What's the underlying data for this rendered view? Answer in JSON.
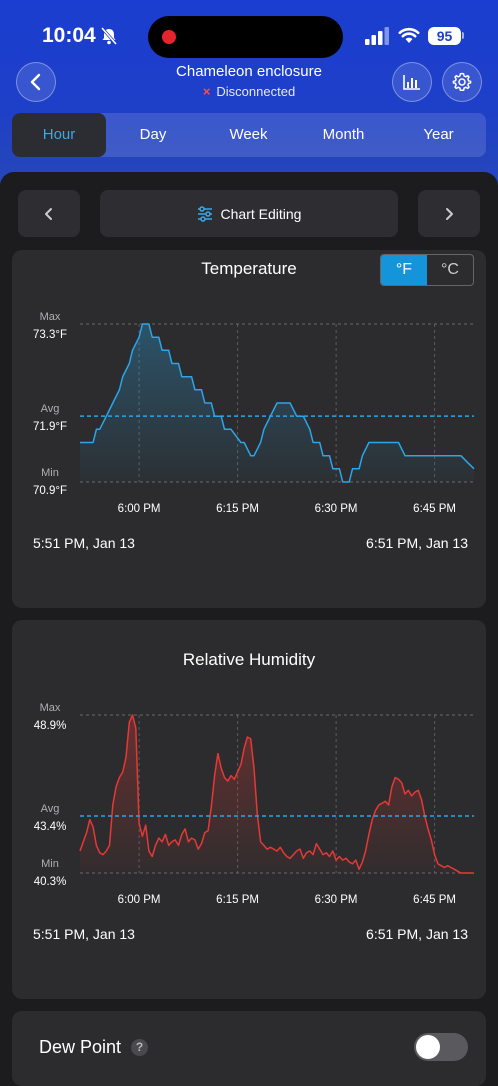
{
  "status_bar": {
    "time": "10:04",
    "battery": "95"
  },
  "header": {
    "title": "Chameleon enclosure",
    "status": "Disconnected",
    "status_icon": "×"
  },
  "tabs": [
    {
      "label": "Hour",
      "active": true
    },
    {
      "label": "Day",
      "active": false
    },
    {
      "label": "Week",
      "active": false
    },
    {
      "label": "Month",
      "active": false
    },
    {
      "label": "Year",
      "active": false
    }
  ],
  "toolbar": {
    "chart_editing_label": "Chart Editing"
  },
  "temperature": {
    "title": "Temperature",
    "unit_f": "°F",
    "unit_c": "°C",
    "max_label": "Max",
    "max_value": "73.3°F",
    "avg_label": "Avg",
    "avg_value": "71.9°F",
    "min_label": "Min",
    "min_value": "70.9°F",
    "start": "5:51 PM,  Jan 13",
    "end": "6:51 PM,  Jan 13"
  },
  "humidity": {
    "title": "Relative Humidity",
    "max_label": "Max",
    "max_value": "48.9%",
    "avg_label": "Avg",
    "avg_value": "43.4%",
    "min_label": "Min",
    "min_value": "40.3%",
    "start": "5:51 PM,  Jan 13",
    "end": "6:51 PM,  Jan 13"
  },
  "dew_point": {
    "label": "Dew Point",
    "help": "?",
    "enabled": false
  },
  "chart_data": [
    {
      "type": "area",
      "title": "Temperature",
      "x_ticks": [
        "6:00 PM",
        "6:15 PM",
        "6:30 PM",
        "6:45 PM"
      ],
      "x_range": [
        0,
        60
      ],
      "x_tick_values": [
        9,
        24,
        39,
        54
      ],
      "ylim": [
        70.9,
        73.3
      ],
      "y_max": 73.3,
      "y_avg": 71.9,
      "y_min": 70.9,
      "color": "#2ba6e8",
      "x": [
        0,
        2,
        2.5,
        3,
        4,
        5,
        6,
        6.5,
        7.5,
        8,
        9,
        9.5,
        10.5,
        11,
        12,
        12.5,
        13.5,
        14,
        15,
        15.5,
        17,
        17.5,
        18.5,
        19,
        20,
        20.5,
        21.5,
        22,
        23,
        24.5,
        25,
        26,
        26.5,
        27.5,
        28,
        29,
        30,
        32,
        33,
        34,
        35,
        35.5,
        36.5,
        37,
        38,
        38.5,
        39.5,
        40,
        41,
        41.5,
        42.5,
        43,
        44,
        45,
        45.5,
        46.5,
        47,
        48,
        48.5,
        49.5,
        50,
        51,
        52,
        53,
        54,
        55,
        56,
        57,
        58,
        59,
        60
      ],
      "y": [
        71.5,
        71.5,
        71.7,
        71.7,
        71.9,
        72.1,
        72.3,
        72.5,
        72.7,
        72.9,
        73.1,
        73.3,
        73.3,
        73.1,
        73.1,
        72.9,
        72.9,
        72.7,
        72.7,
        72.5,
        72.5,
        72.3,
        72.3,
        72.1,
        72.1,
        71.9,
        71.9,
        71.7,
        71.7,
        71.5,
        71.5,
        71.3,
        71.3,
        71.5,
        71.7,
        71.9,
        72.1,
        72.1,
        71.9,
        71.9,
        71.7,
        71.5,
        71.5,
        71.3,
        71.3,
        71.1,
        71.1,
        70.9,
        70.9,
        71.1,
        71.1,
        71.3,
        71.5,
        71.5,
        71.5,
        71.5,
        71.5,
        71.5,
        71.5,
        71.3,
        71.3,
        71.3,
        71.3,
        71.3,
        71.3,
        71.3,
        71.3,
        71.3,
        71.3,
        71.2,
        71.1
      ]
    },
    {
      "type": "area",
      "title": "Relative Humidity",
      "x_ticks": [
        "6:00 PM",
        "6:15 PM",
        "6:30 PM",
        "6:45 PM"
      ],
      "x_range": [
        0,
        60
      ],
      "x_tick_values": [
        9,
        24,
        39,
        54
      ],
      "ylim": [
        40.3,
        48.9
      ],
      "y_max": 48.9,
      "y_avg": 43.4,
      "y_min": 40.3,
      "color": "#e53935",
      "x": [
        0,
        0.5,
        1,
        1.5,
        2,
        2.5,
        3,
        3.5,
        4,
        4.5,
        5,
        5.5,
        6,
        6.5,
        7,
        7.5,
        8,
        8.5,
        9,
        9.5,
        10,
        10.5,
        11,
        11.5,
        12,
        12.5,
        13,
        13.5,
        14,
        14.5,
        15,
        15.5,
        16,
        16.5,
        17,
        17.5,
        18,
        18.5,
        19,
        19.5,
        20,
        20.5,
        21,
        21.5,
        22,
        22.5,
        23,
        23.5,
        24,
        24.5,
        25,
        25.5,
        26,
        26.5,
        27,
        27.5,
        28,
        28.5,
        29,
        29.5,
        30,
        30.5,
        31,
        31.5,
        32,
        32.5,
        33,
        33.5,
        34,
        34.5,
        35,
        35.5,
        36,
        36.5,
        37,
        37.5,
        38,
        38.5,
        39,
        39.5,
        40,
        40.5,
        41,
        41.5,
        42,
        42.5,
        43,
        43.5,
        44,
        44.5,
        45,
        45.5,
        46,
        46.5,
        47,
        47.5,
        48,
        48.5,
        49,
        49.5,
        50,
        50.5,
        51,
        51.5,
        52,
        52.5,
        53,
        53.5,
        54,
        54.5,
        55,
        55.5,
        56,
        56.5,
        57,
        57.5,
        58,
        58.5,
        59,
        59.5,
        60
      ],
      "y": [
        41.5,
        42.0,
        42.5,
        43.2,
        42.8,
        41.8,
        41.4,
        41.3,
        41.5,
        41.8,
        44.0,
        45.0,
        45.5,
        45.8,
        46.6,
        48.5,
        48.9,
        48.2,
        43.0,
        42.3,
        42.9,
        41.5,
        41.2,
        41.8,
        42.2,
        42.0,
        42.4,
        41.8,
        42.0,
        42.1,
        41.8,
        42.4,
        42.7,
        42.0,
        42.2,
        42.1,
        41.6,
        41.9,
        42.5,
        42.6,
        43.9,
        45.6,
        46.8,
        46.0,
        45.5,
        45.3,
        45.6,
        45.4,
        45.8,
        46.2,
        47.1,
        47.7,
        47.6,
        46.0,
        43.5,
        42.0,
        41.8,
        41.6,
        41.7,
        41.6,
        41.5,
        41.7,
        41.4,
        41.2,
        41.1,
        41.3,
        41.5,
        41.6,
        41.1,
        41.4,
        41.5,
        41.3,
        41.9,
        41.6,
        41.3,
        41.4,
        41.2,
        41.5,
        41.0,
        41.2,
        41.0,
        41.1,
        40.9,
        40.8,
        41.0,
        40.5,
        40.9,
        41.5,
        42.4,
        43.2,
        43.7,
        44.0,
        44.1,
        44.2,
        44.0,
        45.0,
        45.5,
        45.4,
        45.2,
        44.6,
        44.8,
        44.5,
        44.7,
        44.8,
        44.3,
        43.4,
        42.7,
        42.1,
        41.3,
        40.8,
        40.7,
        40.6,
        40.7,
        40.6,
        40.5,
        40.4,
        40.3,
        40.3,
        40.3,
        40.3,
        40.3
      ]
    }
  ]
}
